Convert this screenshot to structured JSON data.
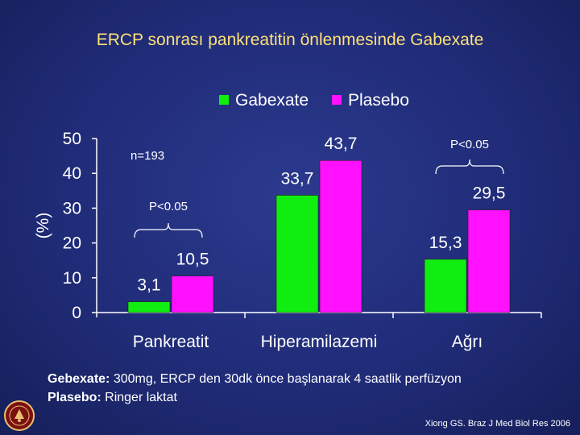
{
  "slide": {
    "title": "ERCP sonrası pankreatitin önlenmesinde Gabexate",
    "notes": [
      {
        "label": "Gebexate:",
        "text": " 300mg, ERCP den 30dk önce başlanarak  4 saatlik perfüzyon"
      },
      {
        "label": "Plasebo:",
        "text": "  Ringer laktat"
      }
    ],
    "citation": "Xiong GS. Braz J Med Biol Res 2006",
    "logo_icon": "university-seal-icon"
  },
  "chart_data": {
    "type": "bar",
    "title": "",
    "ylabel": "(%)",
    "xlabel": "",
    "ylim": [
      0,
      50
    ],
    "yticks": [
      0,
      10,
      20,
      30,
      40,
      50
    ],
    "categories": [
      "Pankreatit",
      "Hiperamilazemi",
      "Ağrı"
    ],
    "series": [
      {
        "name": "Gabexate",
        "color": "#10ee10",
        "values": [
          3.1,
          33.7,
          15.3
        ],
        "labels": [
          "3,1",
          "33,7",
          "15,3"
        ]
      },
      {
        "name": "Plasebo",
        "color": "#ff10ff",
        "values": [
          10.5,
          43.7,
          29.5
        ],
        "labels": [
          "10,5",
          "43,7",
          "29,5"
        ]
      }
    ],
    "legend_position": "top",
    "annotations": [
      {
        "text": "n=193"
      },
      {
        "text": "P<0.05",
        "category": "Pankreatit"
      },
      {
        "text": "P<0.05",
        "category": "Ağrı"
      }
    ]
  }
}
